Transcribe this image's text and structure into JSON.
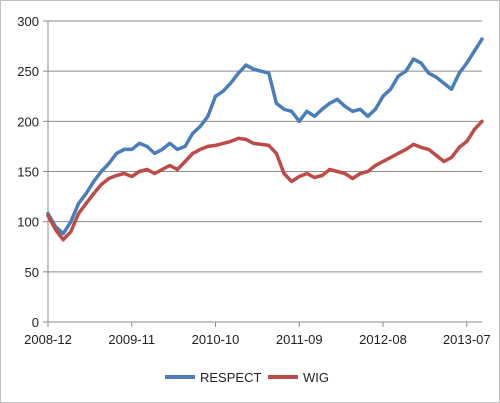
{
  "chart_data": {
    "type": "line",
    "title": "",
    "xlabel": "",
    "ylabel": "",
    "ylim": [
      0,
      300
    ],
    "yticks": [
      0,
      50,
      100,
      150,
      200,
      250,
      300
    ],
    "xticks": [
      "2008-12",
      "2009-11",
      "2010-10",
      "2011-09",
      "2012-08",
      "2013-07"
    ],
    "x": [
      "2008-12",
      "2009-01",
      "2009-02",
      "2009-03",
      "2009-04",
      "2009-05",
      "2009-06",
      "2009-07",
      "2009-08",
      "2009-09",
      "2009-10",
      "2009-11",
      "2009-12",
      "2010-01",
      "2010-02",
      "2010-03",
      "2010-04",
      "2010-05",
      "2010-06",
      "2010-07",
      "2010-08",
      "2010-09",
      "2010-10",
      "2010-11",
      "2010-12",
      "2011-01",
      "2011-02",
      "2011-03",
      "2011-04",
      "2011-05",
      "2011-06",
      "2011-07",
      "2011-08",
      "2011-09",
      "2011-10",
      "2011-11",
      "2011-12",
      "2012-01",
      "2012-02",
      "2012-03",
      "2012-04",
      "2012-05",
      "2012-06",
      "2012-07",
      "2012-08",
      "2012-09",
      "2012-10",
      "2012-11",
      "2012-12",
      "2013-01",
      "2013-02",
      "2013-03",
      "2013-04",
      "2013-05",
      "2013-06",
      "2013-07",
      "2013-08",
      "2013-09"
    ],
    "series": [
      {
        "name": "RESPECT",
        "color": "#4a7ebb",
        "values": [
          108,
          95,
          88,
          100,
          118,
          128,
          140,
          150,
          158,
          168,
          172,
          172,
          178,
          175,
          168,
          172,
          178,
          172,
          175,
          188,
          195,
          205,
          225,
          230,
          238,
          248,
          256,
          252,
          250,
          248,
          218,
          212,
          210,
          200,
          210,
          205,
          212,
          218,
          222,
          215,
          210,
          212,
          205,
          212,
          225,
          232,
          245,
          250,
          262,
          258,
          248,
          244,
          238,
          232,
          248,
          258,
          270,
          282
        ]
      },
      {
        "name": "WIG",
        "color": "#be4b48",
        "values": [
          106,
          92,
          82,
          90,
          108,
          118,
          128,
          137,
          143,
          146,
          148,
          145,
          150,
          152,
          148,
          152,
          156,
          152,
          160,
          168,
          172,
          175,
          176,
          178,
          180,
          183,
          182,
          178,
          177,
          176,
          168,
          148,
          140,
          145,
          148,
          144,
          146,
          152,
          150,
          148,
          143,
          148,
          150,
          156,
          160,
          164,
          168,
          172,
          177,
          174,
          172,
          166,
          160,
          164,
          174,
          180,
          192,
          200
        ]
      }
    ],
    "legend_position": "bottom",
    "grid": "horizontal"
  }
}
